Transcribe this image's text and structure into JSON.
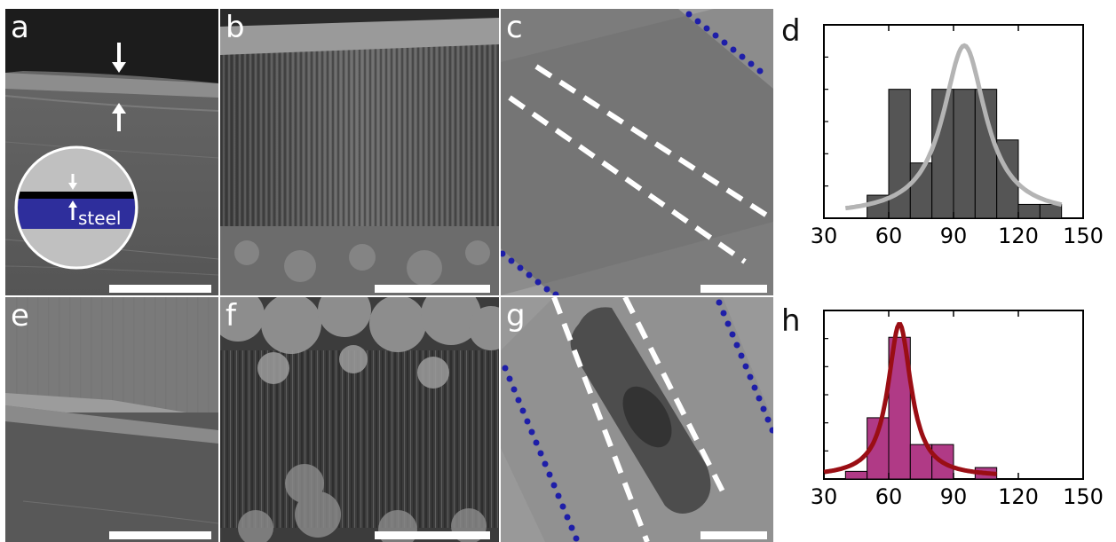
{
  "panels": {
    "a": {
      "label": "a",
      "inset_label": "steel"
    },
    "b": {
      "label": "b"
    },
    "c": {
      "label": "c"
    },
    "d": {
      "label": "d"
    },
    "e": {
      "label": "e"
    },
    "f": {
      "label": "f"
    },
    "g": {
      "label": "g"
    },
    "h": {
      "label": "h"
    }
  },
  "colors": {
    "steel_blue": "#2e2e9c",
    "dot_blue": "#1e1ea8",
    "hist_d_bar": "#555555",
    "fit_d": "#b4b4b4",
    "hist_h_bar": "#b03a86",
    "fit_h": "#9a0e14"
  },
  "chart_data": [
    {
      "panel": "d",
      "type": "bar",
      "xlim": [
        30,
        150
      ],
      "xticks": [
        30,
        60,
        90,
        120,
        150
      ],
      "bin_width": 10,
      "bins": [
        50,
        60,
        70,
        80,
        90,
        100,
        110,
        120,
        130
      ],
      "values": [
        5,
        28,
        12,
        28,
        28,
        28,
        17,
        3,
        3
      ],
      "ylim": [
        0,
        42
      ],
      "fit": {
        "type": "lorentzian",
        "center": 95,
        "fwhm": 24,
        "amplitude": 37,
        "baseline": 0.5,
        "x_range": [
          40,
          140
        ]
      }
    },
    {
      "panel": "h",
      "type": "bar",
      "xlim": [
        30,
        150
      ],
      "xticks": [
        30,
        60,
        90,
        120,
        150
      ],
      "bin_width": 10,
      "bins": [
        40,
        50,
        60,
        70,
        80,
        90,
        100
      ],
      "values": [
        2,
        16,
        37,
        9,
        9,
        0,
        3
      ],
      "ylim": [
        0,
        44
      ],
      "fit": {
        "type": "lorentzian",
        "center": 65,
        "fwhm": 13,
        "amplitude": 40,
        "baseline": 0.5,
        "x_range": [
          30,
          110
        ]
      }
    }
  ]
}
